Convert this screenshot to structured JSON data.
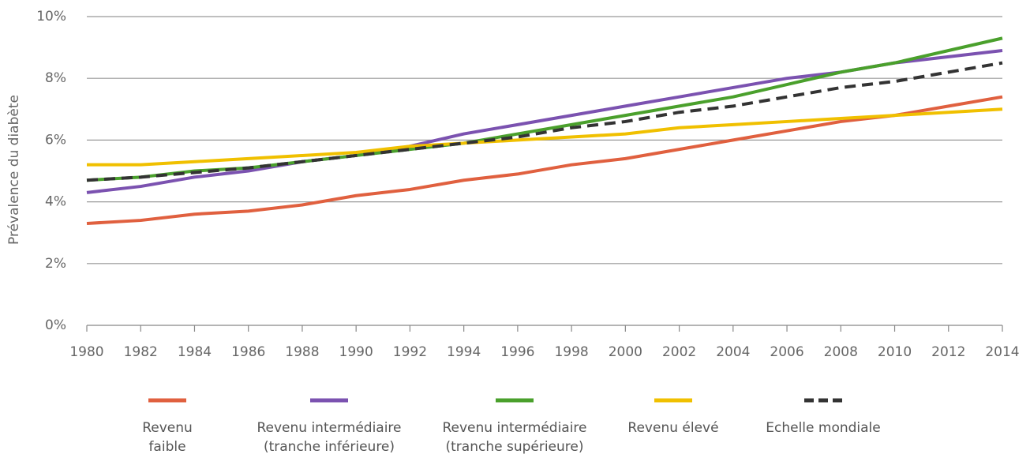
{
  "chart_data": {
    "type": "line",
    "ylabel": "Prévalence du diabète",
    "x": [
      1980,
      1982,
      1984,
      1986,
      1988,
      1990,
      1992,
      1994,
      1996,
      1998,
      2000,
      2002,
      2004,
      2006,
      2008,
      2010,
      2012,
      2014
    ],
    "xlim": [
      1980,
      2014
    ],
    "xticks": [
      1980,
      1982,
      1984,
      1986,
      1988,
      1990,
      1992,
      1994,
      1996,
      1998,
      2000,
      2002,
      2004,
      2006,
      2008,
      2010,
      2012,
      2014
    ],
    "ylim": [
      0,
      10
    ],
    "yticks": [
      {
        "value": 0,
        "label": "0%"
      },
      {
        "value": 2,
        "label": "2%"
      },
      {
        "value": 4,
        "label": "4%"
      },
      {
        "value": 6,
        "label": "6%"
      },
      {
        "value": 8,
        "label": "8%"
      },
      {
        "value": 10,
        "label": "10%"
      }
    ],
    "grid": true,
    "legend": "bottom",
    "series": [
      {
        "name": "Revenu\nfaible",
        "color": "#e0603f",
        "values": [
          3.3,
          3.4,
          3.6,
          3.7,
          3.9,
          4.2,
          4.4,
          4.7,
          4.9,
          5.2,
          5.4,
          5.7,
          6.0,
          6.3,
          6.6,
          6.8,
          7.1,
          7.4
        ]
      },
      {
        "name": "Revenu intermédiaire\n(tranche inférieure)",
        "color": "#7b52b0",
        "values": [
          4.3,
          4.5,
          4.8,
          5.0,
          5.3,
          5.5,
          5.8,
          6.2,
          6.5,
          6.8,
          7.1,
          7.4,
          7.7,
          8.0,
          8.2,
          8.5,
          8.7,
          8.9
        ]
      },
      {
        "name": "Revenu intermédiaire\n(tranche supérieure)",
        "color": "#4aa02c",
        "values": [
          4.7,
          4.8,
          5.0,
          5.1,
          5.3,
          5.5,
          5.7,
          5.9,
          6.2,
          6.5,
          6.8,
          7.1,
          7.4,
          7.8,
          8.2,
          8.5,
          8.9,
          9.3
        ]
      },
      {
        "name": "Revenu élevé",
        "color": "#f0c000",
        "values": [
          5.2,
          5.2,
          5.3,
          5.4,
          5.5,
          5.6,
          5.8,
          5.9,
          6.0,
          6.1,
          6.2,
          6.4,
          6.5,
          6.6,
          6.7,
          6.8,
          6.9,
          7.0
        ]
      },
      {
        "name": "Echelle mondiale",
        "color": "#333333",
        "dashed": true,
        "values": [
          4.7,
          4.8,
          4.95,
          5.1,
          5.3,
          5.5,
          5.7,
          5.9,
          6.1,
          6.4,
          6.6,
          6.9,
          7.1,
          7.4,
          7.7,
          7.9,
          8.2,
          8.5
        ]
      }
    ]
  }
}
